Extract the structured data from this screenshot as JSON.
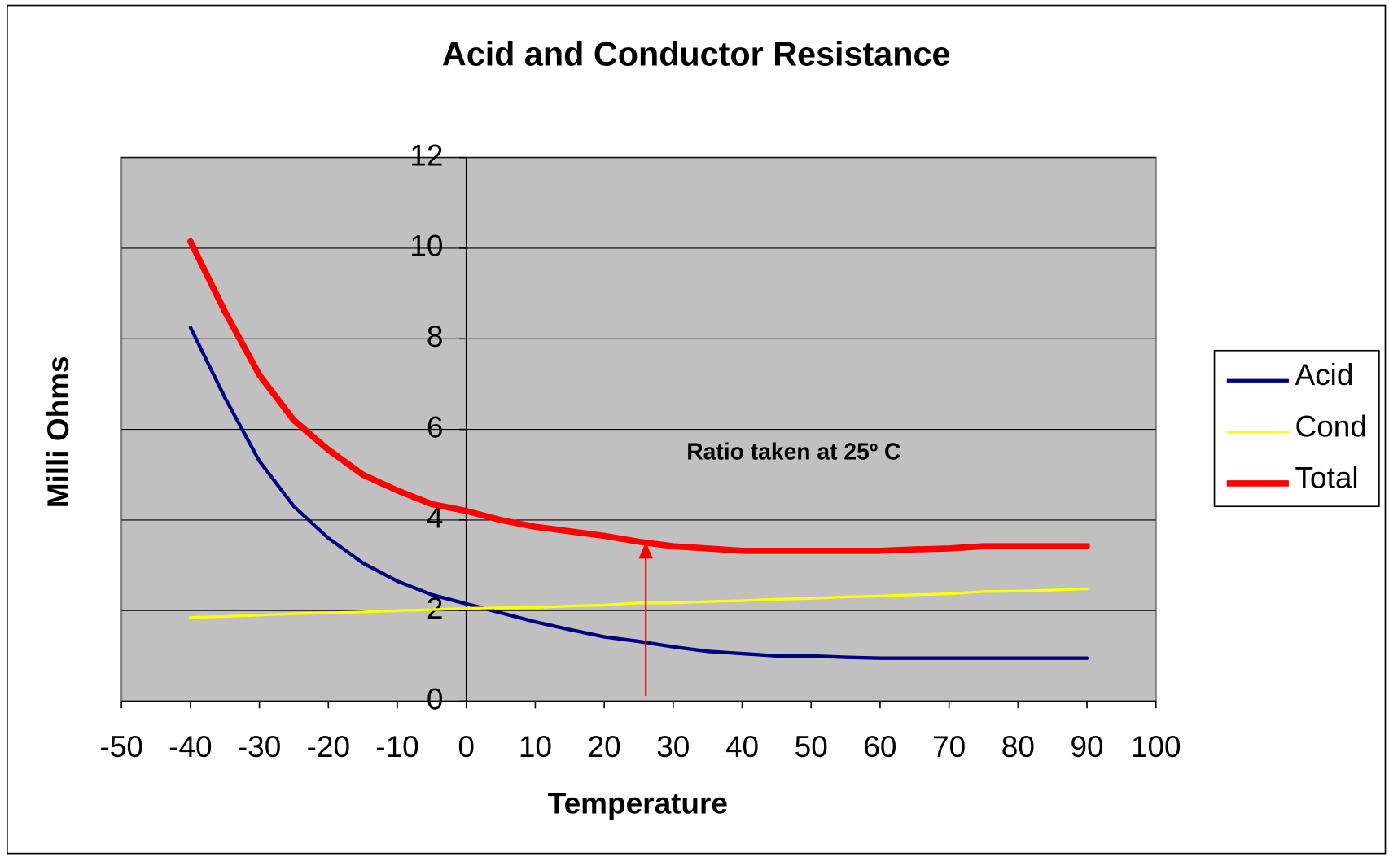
{
  "chart_data": {
    "type": "line",
    "title": "Acid and Conductor Resistance",
    "xlabel": "Temperature",
    "ylabel": "Milli Ohms",
    "annotation": "Ratio taken at 25º C",
    "x": [
      -40,
      -35,
      -30,
      -25,
      -20,
      -15,
      -10,
      -5,
      0,
      5,
      10,
      15,
      20,
      25,
      30,
      35,
      40,
      45,
      50,
      55,
      60,
      65,
      70,
      75,
      80,
      85,
      90
    ],
    "series": [
      {
        "name": "Acid",
        "color": "#000080",
        "values": [
          8.25,
          6.7,
          5.3,
          4.3,
          3.6,
          3.05,
          2.65,
          2.35,
          2.15,
          1.95,
          1.75,
          1.58,
          1.42,
          1.32,
          1.2,
          1.1,
          1.05,
          1.0,
          1.0,
          0.97,
          0.95,
          0.95,
          0.95,
          0.95,
          0.95,
          0.95,
          0.95
        ]
      },
      {
        "name": "Cond",
        "color": "#ffff00",
        "values": [
          1.85,
          1.87,
          1.9,
          1.93,
          1.95,
          1.97,
          2.0,
          2.02,
          2.05,
          2.06,
          2.07,
          2.1,
          2.12,
          2.17,
          2.17,
          2.2,
          2.22,
          2.25,
          2.27,
          2.3,
          2.32,
          2.35,
          2.37,
          2.42,
          2.43,
          2.45,
          2.48
        ]
      },
      {
        "name": "Total",
        "color": "#ff0000",
        "values": [
          10.15,
          8.6,
          7.2,
          6.2,
          5.55,
          5.0,
          4.65,
          4.35,
          4.2,
          4.0,
          3.85,
          3.75,
          3.65,
          3.52,
          3.42,
          3.37,
          3.32,
          3.32,
          3.32,
          3.32,
          3.32,
          3.35,
          3.37,
          3.42,
          3.42,
          3.42,
          3.42
        ]
      }
    ],
    "xlim": [
      -50,
      100
    ],
    "xticks": [
      -50,
      -40,
      -30,
      -20,
      -10,
      0,
      10,
      20,
      30,
      40,
      50,
      60,
      70,
      80,
      90,
      100
    ],
    "ylim": [
      0,
      12
    ],
    "yticks": [
      0,
      2,
      4,
      6,
      8,
      10,
      12
    ],
    "grid": true,
    "legend": "right",
    "background": "#c0c0c0"
  }
}
